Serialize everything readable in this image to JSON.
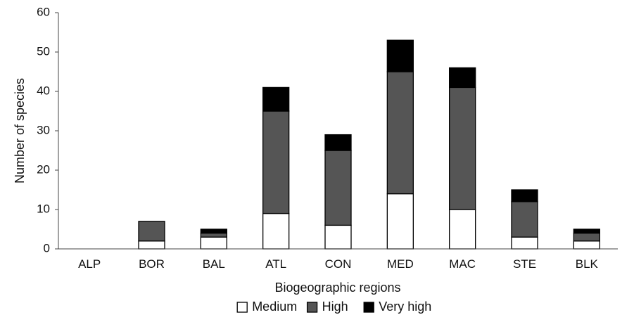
{
  "chart_data": {
    "type": "bar",
    "stacked": true,
    "categories": [
      "ALP",
      "BOR",
      "BAL",
      "ATL",
      "CON",
      "MED",
      "MAC",
      "STE",
      "BLK"
    ],
    "series": [
      {
        "name": "Medium",
        "color": "#ffffff",
        "values": [
          0,
          2,
          3,
          9,
          6,
          14,
          10,
          3,
          2
        ]
      },
      {
        "name": "High",
        "color": "#555555",
        "values": [
          0,
          5,
          1,
          26,
          19,
          31,
          31,
          9,
          2
        ]
      },
      {
        "name": "Very high",
        "color": "#000000",
        "values": [
          0,
          0,
          1,
          6,
          4,
          8,
          5,
          3,
          1
        ]
      }
    ],
    "xlabel": "Biogeographic regions",
    "ylabel": "Number of species",
    "ylim": [
      0,
      60
    ],
    "yticks": [
      0,
      10,
      20,
      30,
      40,
      50,
      60
    ],
    "grid": false,
    "legend_position": "bottom-center"
  }
}
